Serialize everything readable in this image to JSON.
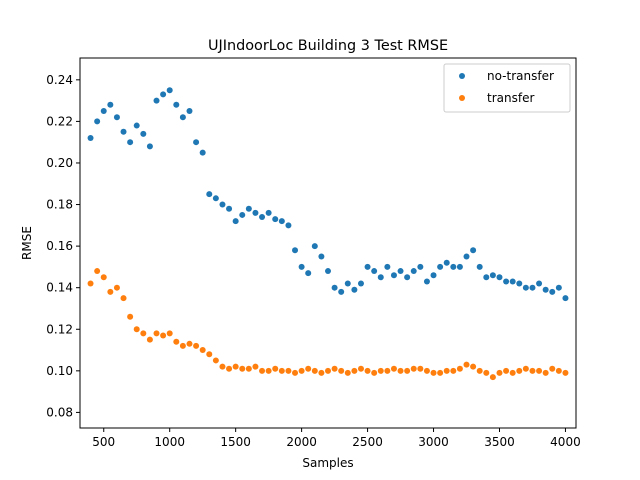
{
  "chart_data": {
    "type": "scatter",
    "title": "UJIndoorLoc Building 3 Test RMSE",
    "xlabel": "Samples",
    "ylabel": "RMSE",
    "xlim": [
      320,
      4080
    ],
    "ylim": [
      0.0725,
      0.2505
    ],
    "xticks": [
      500,
      1000,
      1500,
      2000,
      2500,
      3000,
      3500,
      4000
    ],
    "xtick_labels": [
      "500",
      "1000",
      "1500",
      "2000",
      "2500",
      "3000",
      "3500",
      "4000"
    ],
    "yticks": [
      0.08,
      0.1,
      0.12,
      0.14,
      0.16,
      0.18,
      0.2,
      0.22,
      0.24
    ],
    "ytick_labels": [
      "0.08",
      "0.10",
      "0.12",
      "0.14",
      "0.16",
      "0.18",
      "0.20",
      "0.22",
      "0.24"
    ],
    "legend_position": "top-right",
    "grid": false,
    "series": [
      {
        "name": "no-transfer",
        "color": "#1f77b4",
        "x": [
          400,
          450,
          500,
          550,
          600,
          650,
          700,
          750,
          800,
          850,
          900,
          950,
          1000,
          1050,
          1100,
          1150,
          1200,
          1250,
          1300,
          1350,
          1400,
          1450,
          1500,
          1550,
          1600,
          1650,
          1700,
          1750,
          1800,
          1850,
          1900,
          1950,
          2000,
          2050,
          2100,
          2150,
          2200,
          2250,
          2300,
          2350,
          2400,
          2450,
          2500,
          2550,
          2600,
          2650,
          2700,
          2750,
          2800,
          2850,
          2900,
          2950,
          3000,
          3050,
          3100,
          3150,
          3200,
          3250,
          3300,
          3350,
          3400,
          3450,
          3500,
          3550,
          3600,
          3650,
          3700,
          3750,
          3800,
          3850,
          3900,
          3950,
          4000
        ],
        "y": [
          0.212,
          0.22,
          0.225,
          0.228,
          0.222,
          0.215,
          0.21,
          0.218,
          0.214,
          0.208,
          0.23,
          0.233,
          0.235,
          0.228,
          0.222,
          0.225,
          0.21,
          0.205,
          0.185,
          0.183,
          0.18,
          0.178,
          0.172,
          0.175,
          0.178,
          0.176,
          0.174,
          0.176,
          0.173,
          0.172,
          0.17,
          0.158,
          0.15,
          0.147,
          0.16,
          0.155,
          0.148,
          0.14,
          0.138,
          0.142,
          0.139,
          0.142,
          0.15,
          0.148,
          0.145,
          0.15,
          0.146,
          0.148,
          0.145,
          0.148,
          0.15,
          0.143,
          0.146,
          0.15,
          0.152,
          0.15,
          0.15,
          0.155,
          0.158,
          0.15,
          0.145,
          0.146,
          0.145,
          0.143,
          0.143,
          0.142,
          0.14,
          0.14,
          0.142,
          0.139,
          0.138,
          0.14,
          0.135
        ]
      },
      {
        "name": "transfer",
        "color": "#ff7f0e",
        "x": [
          400,
          450,
          500,
          550,
          600,
          650,
          700,
          750,
          800,
          850,
          900,
          950,
          1000,
          1050,
          1100,
          1150,
          1200,
          1250,
          1300,
          1350,
          1400,
          1450,
          1500,
          1550,
          1600,
          1650,
          1700,
          1750,
          1800,
          1850,
          1900,
          1950,
          2000,
          2050,
          2100,
          2150,
          2200,
          2250,
          2300,
          2350,
          2400,
          2450,
          2500,
          2550,
          2600,
          2650,
          2700,
          2750,
          2800,
          2850,
          2900,
          2950,
          3000,
          3050,
          3100,
          3150,
          3200,
          3250,
          3300,
          3350,
          3400,
          3450,
          3500,
          3550,
          3600,
          3650,
          3700,
          3750,
          3800,
          3850,
          3900,
          3950,
          4000
        ],
        "y": [
          0.142,
          0.148,
          0.145,
          0.138,
          0.14,
          0.135,
          0.126,
          0.12,
          0.118,
          0.115,
          0.118,
          0.117,
          0.118,
          0.114,
          0.112,
          0.113,
          0.112,
          0.11,
          0.108,
          0.105,
          0.102,
          0.101,
          0.102,
          0.101,
          0.101,
          0.102,
          0.1,
          0.1,
          0.101,
          0.1,
          0.1,
          0.099,
          0.1,
          0.101,
          0.1,
          0.099,
          0.1,
          0.101,
          0.1,
          0.099,
          0.1,
          0.101,
          0.1,
          0.099,
          0.1,
          0.1,
          0.101,
          0.1,
          0.1,
          0.101,
          0.101,
          0.1,
          0.099,
          0.099,
          0.1,
          0.1,
          0.101,
          0.103,
          0.102,
          0.1,
          0.099,
          0.097,
          0.099,
          0.1,
          0.099,
          0.1,
          0.101,
          0.1,
          0.1,
          0.099,
          0.101,
          0.1,
          0.099
        ]
      }
    ]
  }
}
